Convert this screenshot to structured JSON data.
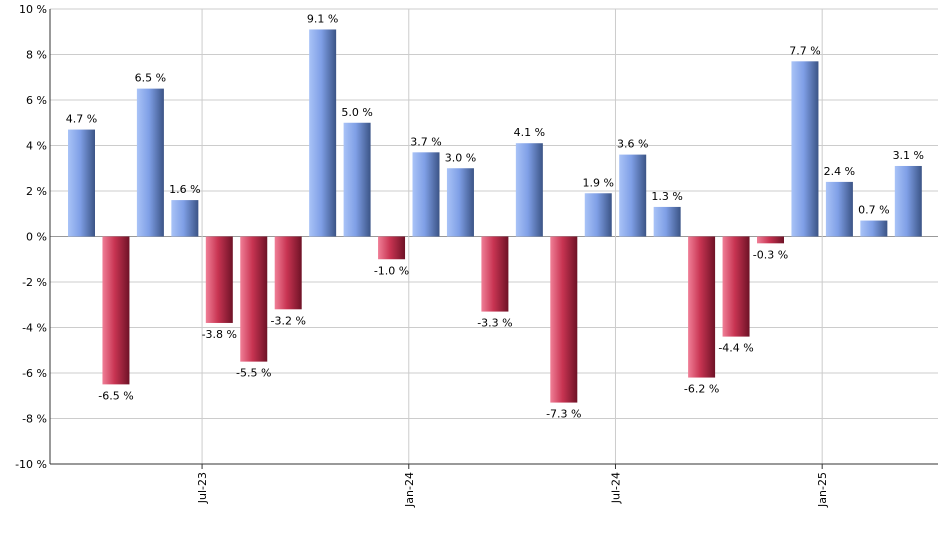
{
  "chart_data": {
    "type": "bar",
    "title": "",
    "xlabel": "",
    "ylabel": "",
    "ylim": [
      -10,
      10
    ],
    "ytick_step": 2,
    "y_tick_suffix": " %",
    "grid": true,
    "values": [
      4.7,
      -6.5,
      6.5,
      1.6,
      -3.8,
      -5.5,
      -3.2,
      9.1,
      5.0,
      -1.0,
      3.7,
      3.0,
      -3.3,
      4.1,
      -7.3,
      1.9,
      3.6,
      1.3,
      -6.2,
      -4.4,
      -0.3,
      7.7,
      2.4,
      0.7,
      3.1
    ],
    "value_labels": [
      "4.7 %",
      "-6.5 %",
      "6.5 %",
      "1.6 %",
      "-3.8 %",
      "-5.5 %",
      "-3.2 %",
      "9.1 %",
      "5.0 %",
      "-1.0 %",
      "3.7 %",
      "3.0 %",
      "-3.3 %",
      "4.1 %",
      "-7.3 %",
      "1.9 %",
      "3.6 %",
      "1.3 %",
      "-6.2 %",
      "-4.4 %",
      "-0.3 %",
      "7.7 %",
      "2.4 %",
      "0.7 %",
      "3.1 %"
    ],
    "x_tick_labels": [
      {
        "label": "Jul-23",
        "bar_index": 3
      },
      {
        "label": "Jan-24",
        "bar_index": 9
      },
      {
        "label": "Jul-24",
        "bar_index": 15
      },
      {
        "label": "Jan-25",
        "bar_index": 21
      }
    ],
    "colors": {
      "positive": "#7f9fe6",
      "negative": "#c83452",
      "grid": "#cccccc",
      "axis": "#333333",
      "text": "#000000"
    }
  }
}
